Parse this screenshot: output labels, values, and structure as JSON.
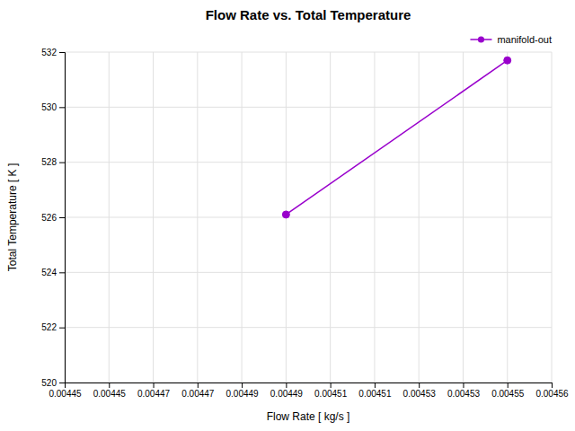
{
  "chart_data": {
    "type": "line",
    "title": "Flow Rate vs. Total Temperature",
    "xlabel": "Flow Rate [ kg/s ]",
    "ylabel": "Total Temperature [ K ]",
    "series": [
      {
        "name": "manifold-out",
        "color": "#9900cc",
        "marker": "circle",
        "line_style": "solid",
        "x": [
          0.004495,
          0.004545
        ],
        "values": [
          526.1,
          531.7
        ]
      }
    ],
    "xlim": [
      0.004445,
      0.004555
    ],
    "xticks": [
      {
        "value": 0.004445,
        "label": "0.00445"
      },
      {
        "value": 0.004455,
        "label": "0.00445"
      },
      {
        "value": 0.004465,
        "label": "0.00447"
      },
      {
        "value": 0.004475,
        "label": "0.00447"
      },
      {
        "value": 0.004485,
        "label": "0.00449"
      },
      {
        "value": 0.004495,
        "label": "0.00449"
      },
      {
        "value": 0.004505,
        "label": "0.00451"
      },
      {
        "value": 0.004515,
        "label": "0.00451"
      },
      {
        "value": 0.004525,
        "label": "0.00453"
      },
      {
        "value": 0.004535,
        "label": "0.00453"
      },
      {
        "value": 0.004545,
        "label": "0.00455"
      },
      {
        "value": 0.004555,
        "label": "0.00456"
      }
    ],
    "ylim": [
      520,
      532
    ],
    "yticks": [
      520,
      522,
      524,
      526,
      528,
      530,
      532
    ],
    "grid": true,
    "legend": "upper right"
  }
}
